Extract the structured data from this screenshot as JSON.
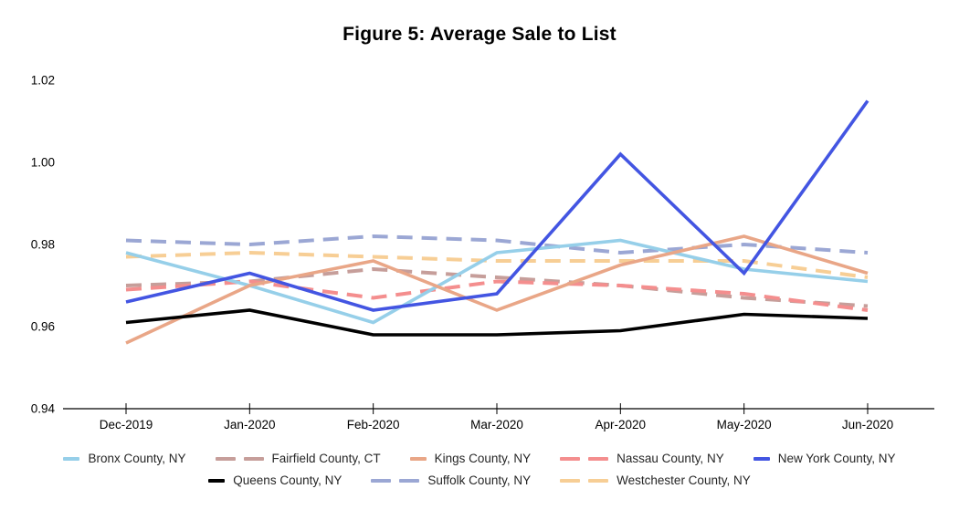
{
  "title": "Figure 5: Average Sale to List",
  "axes": {
    "y_tick_labels": [
      "1.02",
      "1.00",
      "0.98",
      "0.96",
      "0.94"
    ],
    "y_tick_values": [
      1.02,
      1.0,
      0.98,
      0.96,
      0.94
    ],
    "x_tick_labels": [
      "Dec-2019",
      "Jan-2020",
      "Feb-2020",
      "Mar-2020",
      "Apr-2020",
      "May-2020",
      "Jun-2020"
    ]
  },
  "chart_data": {
    "type": "line",
    "title": "Figure 5: Average Sale to List",
    "xlabel": "",
    "ylabel": "",
    "ylim": [
      0.94,
      1.02
    ],
    "grid": false,
    "legend_position": "bottom",
    "categories": [
      "Dec-2019",
      "Jan-2020",
      "Feb-2020",
      "Mar-2020",
      "Apr-2020",
      "May-2020",
      "Jun-2020"
    ],
    "series": [
      {
        "name": "Bronx County, NY",
        "color": "#96CFE9",
        "dashed": false,
        "values": [
          0.978,
          0.97,
          0.961,
          0.978,
          0.981,
          0.974,
          0.971
        ]
      },
      {
        "name": "Fairfield County, CT",
        "color": "#C69E9A",
        "dashed": true,
        "values": [
          0.97,
          0.971,
          0.974,
          0.972,
          0.97,
          0.967,
          0.965
        ]
      },
      {
        "name": "Kings County, NY",
        "color": "#E9A687",
        "dashed": false,
        "values": [
          0.956,
          0.97,
          0.976,
          0.964,
          0.975,
          0.982,
          0.973
        ]
      },
      {
        "name": "Nassau County, NY",
        "color": "#F48E8E",
        "dashed": true,
        "values": [
          0.969,
          0.971,
          0.967,
          0.971,
          0.97,
          0.968,
          0.964
        ]
      },
      {
        "name": "New York County, NY",
        "color": "#4355E2",
        "dashed": false,
        "values": [
          0.966,
          0.973,
          0.964,
          0.968,
          1.002,
          0.973,
          1.015
        ]
      },
      {
        "name": "Queens County, NY",
        "color": "#000000",
        "dashed": false,
        "values": [
          0.961,
          0.964,
          0.958,
          0.958,
          0.959,
          0.963,
          0.962
        ]
      },
      {
        "name": "Suffolk County, NY",
        "color": "#9BA7D4",
        "dashed": true,
        "values": [
          0.981,
          0.98,
          0.982,
          0.981,
          0.978,
          0.98,
          0.978
        ]
      },
      {
        "name": "Westchester County, NY",
        "color": "#F7CE95",
        "dashed": true,
        "values": [
          0.977,
          0.978,
          0.977,
          0.976,
          0.976,
          0.976,
          0.972
        ]
      }
    ]
  }
}
